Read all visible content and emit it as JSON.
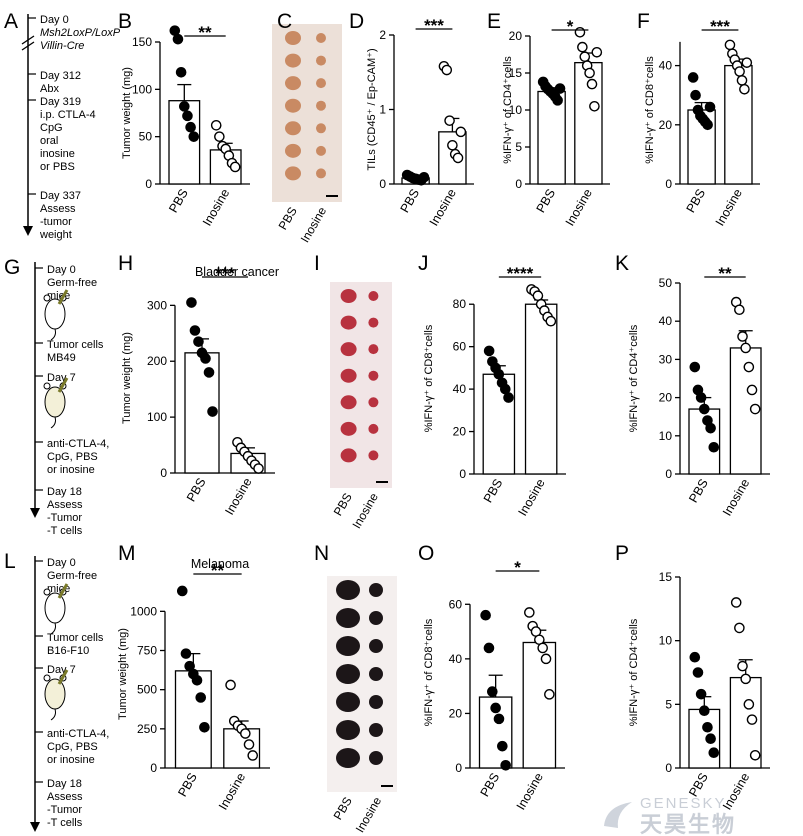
{
  "figure": {
    "timelines": [
      {
        "panel": "A",
        "steps": [
          {
            "lines": [
              "Day 0",
              "Msh2LoxP/LoxP",
              "Villin-Cre"
            ]
          },
          {
            "lines": [
              "Day 312",
              "Abx"
            ]
          },
          {
            "lines": [
              "Day 319",
              "i.p. CTLA-4",
              "CpG",
              "oral",
              "inosine",
              "or PBS"
            ]
          },
          {
            "lines": [
              "Day 337",
              "Assess",
              "-tumor",
              "weight"
            ]
          }
        ]
      },
      {
        "panel": "G",
        "steps": [
          {
            "lines": [
              "Day 0",
              "Germ-free",
              "mice"
            ]
          },
          {
            "lines": [
              "Tumor cells",
              "MB49"
            ]
          },
          {
            "lines": [
              "Day 7"
            ]
          },
          {
            "lines": [
              "anti-CTLA-4,",
              "CpG, PBS",
              "or inosine"
            ]
          },
          {
            "lines": [
              "Day 18",
              "Assess",
              "-Tumor",
              "-T cells"
            ]
          }
        ]
      },
      {
        "panel": "L",
        "steps": [
          {
            "lines": [
              "Day 0",
              "Germ-free",
              "mice"
            ]
          },
          {
            "lines": [
              "Tumor cells",
              "B16-F10"
            ]
          },
          {
            "lines": [
              "Day 7"
            ]
          },
          {
            "lines": [
              "anti-CTLA-4,",
              "CpG, PBS",
              "or inosine"
            ]
          },
          {
            "lines": [
              "Day 18",
              "Assess",
              "-Tumor",
              "-T cells"
            ]
          }
        ]
      }
    ],
    "photos": [
      {
        "panel": "C",
        "labels": [
          "PBS",
          "Inosine"
        ],
        "bg": "#ece0d8",
        "tumor_color": "#c98a63",
        "rows": 7
      },
      {
        "panel": "I",
        "labels": [
          "PBS",
          "Inosine"
        ],
        "bg": "#f1e5e6",
        "tumor_color": "#b8323f",
        "rows": 7
      },
      {
        "panel": "N",
        "labels": [
          "PBS",
          "Inosine"
        ],
        "bg": "#f4efee",
        "tumor_color": "#1c1618",
        "rows": 7
      }
    ],
    "watermark": {
      "line1": "GENESKY",
      "line2": "天昊生物"
    }
  },
  "chart_data": [
    {
      "panel": "B",
      "type": "bar",
      "title": "",
      "ylabel": "Tumor weight (mg)",
      "xlabel": "",
      "categories": [
        "PBS",
        "Inosine"
      ],
      "ylim": [
        0,
        150
      ],
      "yticks": [
        0,
        50,
        100,
        150
      ],
      "values": [
        88,
        36
      ],
      "errors": [
        17,
        7
      ],
      "significance": "**",
      "points": [
        [
          162,
          153,
          118,
          82,
          72,
          60,
          50
        ],
        [
          62,
          50,
          40,
          37,
          30,
          22,
          18
        ]
      ]
    },
    {
      "panel": "D",
      "type": "bar",
      "title": "",
      "ylabel": "TILs (CD45⁺ / Ep-CAM⁺)",
      "xlabel": "",
      "categories": [
        "PBS",
        "Inosine"
      ],
      "ylim": [
        0,
        2
      ],
      "yticks": [
        0,
        1,
        2
      ],
      "values": [
        0.08,
        0.7
      ],
      "errors": [
        0.02,
        0.18
      ],
      "significance": "***",
      "points": [
        [
          0.12,
          0.1,
          0.08,
          0.07,
          0.06,
          0.05,
          0.09
        ],
        [
          1.58,
          1.53,
          0.85,
          0.52,
          0.4,
          0.35,
          0.7
        ]
      ]
    },
    {
      "panel": "E",
      "type": "bar",
      "title": "",
      "ylabel": "%IFN-γ⁺ of CD4⁺cells",
      "xlabel": "",
      "categories": [
        "PBS",
        "Inosine"
      ],
      "ylim": [
        0,
        20
      ],
      "yticks": [
        0,
        5,
        10,
        15,
        20
      ],
      "values": [
        12.5,
        16.4
      ],
      "errors": [
        0.5,
        1.3
      ],
      "significance": "*",
      "points": [
        [
          13.8,
          13.2,
          12.8,
          12.5,
          12.2,
          11.8,
          11.3,
          12.9
        ],
        [
          20.5,
          18.5,
          17.2,
          16.0,
          15.0,
          13.5,
          10.5,
          17.8
        ]
      ]
    },
    {
      "panel": "F",
      "type": "bar",
      "title": "",
      "ylabel": "%IFN-γ⁺ of CD8⁺cells",
      "xlabel": "",
      "categories": [
        "PBS",
        "Inosine"
      ],
      "ylim": [
        0,
        50
      ],
      "yticks": [
        0,
        20,
        40
      ],
      "yticks_max": 48,
      "values": [
        25,
        40
      ],
      "errors": [
        2.5,
        2.2
      ],
      "significance": "***",
      "points": [
        [
          36,
          30,
          25,
          23,
          22,
          21,
          20,
          26
        ],
        [
          47,
          44,
          42,
          40,
          38,
          35,
          32,
          41
        ]
      ]
    },
    {
      "panel": "H",
      "type": "bar",
      "title": "Bladder cancer",
      "ylabel": "Tumor weight (mg)",
      "xlabel": "",
      "categories": [
        "PBS",
        "Inosine"
      ],
      "ylim": [
        0,
        340
      ],
      "yticks": [
        0,
        100,
        200,
        300
      ],
      "values": [
        215,
        35
      ],
      "errors": [
        25,
        10
      ],
      "significance": "***",
      "points": [
        [
          305,
          255,
          235,
          215,
          205,
          180,
          110
        ],
        [
          55,
          45,
          38,
          30,
          22,
          15,
          8
        ]
      ]
    },
    {
      "panel": "J",
      "type": "bar",
      "title": "",
      "ylabel": "%IFN-γ⁺ of CD8⁺cells",
      "xlabel": "",
      "categories": [
        "PBS",
        "Inosine"
      ],
      "ylim": [
        0,
        90
      ],
      "yticks": [
        0,
        20,
        40,
        60,
        80
      ],
      "values": [
        47,
        80
      ],
      "errors": [
        4,
        2
      ],
      "significance": "****",
      "points": [
        [
          58,
          53,
          50,
          47,
          43,
          40,
          36
        ],
        [
          87,
          86,
          84,
          80,
          77,
          74,
          72
        ]
      ]
    },
    {
      "panel": "K",
      "type": "bar",
      "title": "",
      "ylabel": "%IFN-γ⁺ of CD4⁺cells",
      "xlabel": "",
      "categories": [
        "PBS",
        "Inosine"
      ],
      "ylim": [
        0,
        50
      ],
      "yticks": [
        0,
        10,
        20,
        30,
        40,
        50
      ],
      "values": [
        17,
        33
      ],
      "errors": [
        3,
        4.5
      ],
      "significance": "**",
      "points": [
        [
          28,
          22,
          20,
          17,
          14,
          12,
          7
        ],
        [
          45,
          43,
          36,
          33,
          28,
          22,
          17
        ]
      ]
    },
    {
      "panel": "M",
      "type": "bar",
      "title": "Melanoma",
      "ylabel": "Tumor weight (mg)",
      "xlabel": "",
      "categories": [
        "PBS",
        "Inosine"
      ],
      "ylim": [
        0,
        1200
      ],
      "yticks": [
        0,
        250,
        500,
        750,
        1000
      ],
      "values": [
        620,
        250
      ],
      "errors": [
        110,
        50
      ],
      "significance": "**",
      "points": [
        [
          1130,
          730,
          650,
          600,
          560,
          450,
          260
        ],
        [
          530,
          300,
          270,
          250,
          220,
          150,
          80
        ]
      ]
    },
    {
      "panel": "O",
      "type": "bar",
      "title": "",
      "ylabel": "%IFN-γ⁺ of CD8⁺cells",
      "xlabel": "",
      "categories": [
        "PBS",
        "Inosine"
      ],
      "ylim": [
        0,
        70
      ],
      "yticks": [
        0,
        20,
        40,
        60
      ],
      "values": [
        26,
        46
      ],
      "errors": [
        8,
        4.5
      ],
      "significance": "*",
      "points": [
        [
          56,
          44,
          28,
          22,
          18,
          8,
          1
        ],
        [
          57,
          52,
          50,
          47,
          44,
          40,
          27
        ]
      ]
    },
    {
      "panel": "P",
      "type": "bar",
      "title": "",
      "ylabel": "%IFN-γ⁺ of CD4⁺cells",
      "xlabel": "",
      "categories": [
        "PBS",
        "Inosine"
      ],
      "ylim": [
        0,
        15
      ],
      "yticks": [
        0,
        5,
        10,
        15
      ],
      "values": [
        4.6,
        7.1
      ],
      "errors": [
        1,
        1.4
      ],
      "significance": "",
      "points": [
        [
          8.7,
          7.5,
          5.8,
          4.5,
          3.2,
          2.3,
          1.2
        ],
        [
          13.0,
          11.0,
          8.0,
          7.0,
          5.0,
          3.8,
          1.0
        ]
      ]
    }
  ]
}
